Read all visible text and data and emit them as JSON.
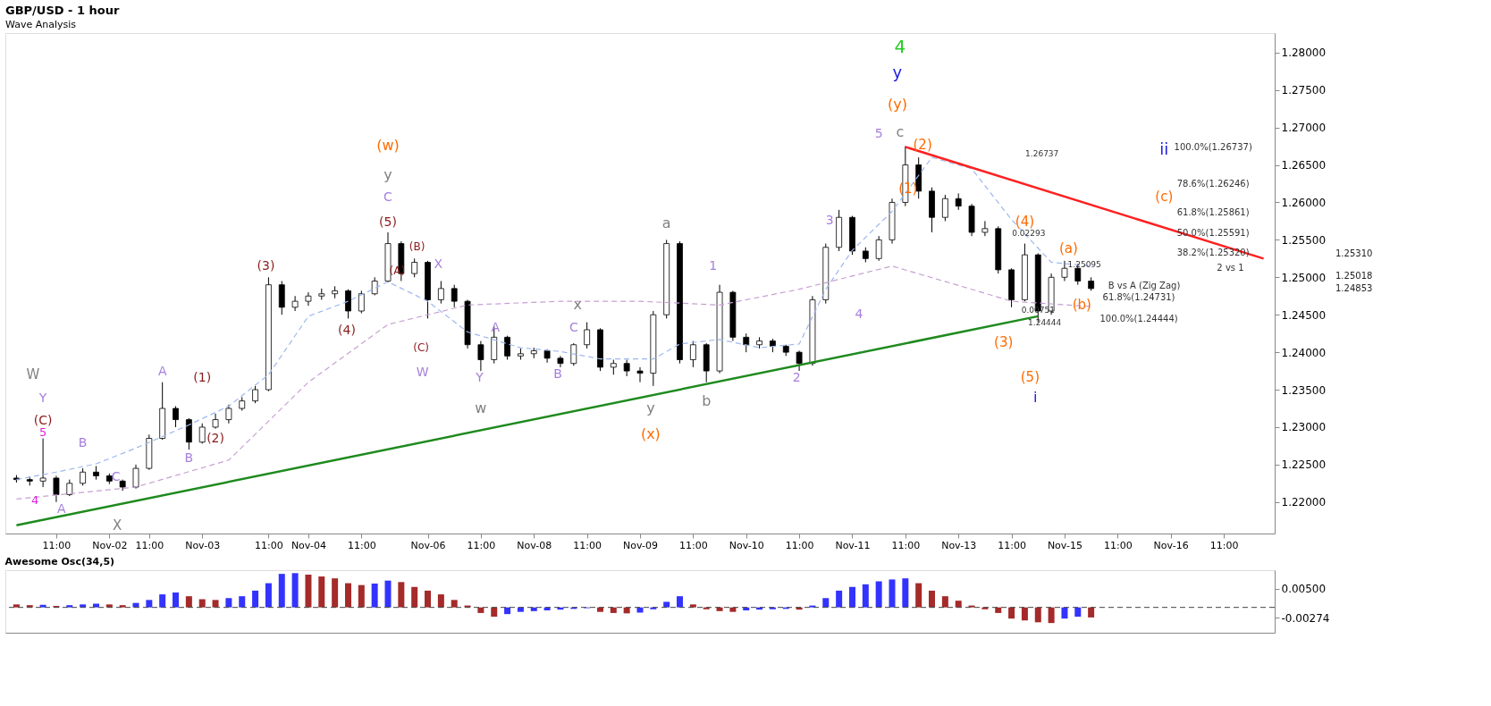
{
  "chart_data": [
    {
      "type": "candlestick",
      "title": "GBP/USD - 1 hour",
      "subtitle": "Wave Analysis",
      "categories": [
        null,
        null,
        null,
        "11:00",
        null,
        null,
        null,
        "Nov-02",
        null,
        null,
        "11:00",
        null,
        null,
        null,
        "Nov-03",
        null,
        null,
        null,
        null,
        "11:00",
        null,
        null,
        "Nov-04",
        null,
        null,
        null,
        "11:00",
        null,
        null,
        null,
        null,
        "Nov-06",
        null,
        null,
        null,
        "11:00",
        null,
        null,
        null,
        "Nov-08",
        null,
        null,
        null,
        "11:00",
        null,
        null,
        null,
        "Nov-09",
        null,
        null,
        null,
        "11:00",
        null,
        null,
        null,
        "Nov-10",
        null,
        null,
        null,
        "11:00",
        null,
        null,
        null,
        "Nov-11",
        null,
        null,
        null,
        "11:00",
        null,
        null,
        null,
        "Nov-13",
        null,
        null,
        null,
        "11:00",
        null,
        null,
        null,
        "Nov-15",
        null,
        null,
        null,
        "11:00",
        null,
        null,
        null,
        "Nov-16",
        null,
        null,
        null,
        "11:00",
        null,
        null,
        null
      ],
      "ohlc": [
        [
          1.2232,
          1.2236,
          1.2226,
          1.223
        ],
        [
          1.223,
          1.2234,
          1.2222,
          1.2228
        ],
        [
          1.2228,
          1.2285,
          1.222,
          1.2232
        ],
        [
          1.2232,
          1.2235,
          1.22,
          1.221
        ],
        [
          1.221,
          1.223,
          1.2208,
          1.2225
        ],
        [
          1.2225,
          1.2245,
          1.2222,
          1.224
        ],
        [
          1.224,
          1.2248,
          1.223,
          1.2235
        ],
        [
          1.2235,
          1.2238,
          1.2224,
          1.2228
        ],
        [
          1.2228,
          1.223,
          1.2215,
          1.222
        ],
        [
          1.222,
          1.225,
          1.2218,
          1.2245
        ],
        [
          1.2245,
          1.229,
          1.2243,
          1.2285
        ],
        [
          1.2285,
          1.236,
          1.2283,
          1.2325
        ],
        [
          1.2325,
          1.2328,
          1.23,
          1.231
        ],
        [
          1.231,
          1.2312,
          1.227,
          1.228
        ],
        [
          1.228,
          1.2305,
          1.2278,
          1.23
        ],
        [
          1.23,
          1.2318,
          1.2298,
          1.231
        ],
        [
          1.231,
          1.233,
          1.2305,
          1.2325
        ],
        [
          1.2325,
          1.234,
          1.2322,
          1.2335
        ],
        [
          1.2335,
          1.2355,
          1.2332,
          1.235
        ],
        [
          1.235,
          1.25,
          1.2348,
          1.249
        ],
        [
          1.249,
          1.2495,
          1.245,
          1.246
        ],
        [
          1.246,
          1.2475,
          1.2455,
          1.2468
        ],
        [
          1.2468,
          1.248,
          1.2462,
          1.2475
        ],
        [
          1.2475,
          1.2485,
          1.247,
          1.2478
        ],
        [
          1.2478,
          1.2488,
          1.2472,
          1.2482
        ],
        [
          1.2482,
          1.2484,
          1.2445,
          1.2455
        ],
        [
          1.2455,
          1.2482,
          1.2452,
          1.2478
        ],
        [
          1.2478,
          1.25,
          1.2476,
          1.2495
        ],
        [
          1.2495,
          1.256,
          1.2493,
          1.2545
        ],
        [
          1.2545,
          1.2548,
          1.2495,
          1.2505
        ],
        [
          1.2505,
          1.2525,
          1.25,
          1.252
        ],
        [
          1.252,
          1.2522,
          1.2445,
          1.247
        ],
        [
          1.247,
          1.2495,
          1.2465,
          1.2485
        ],
        [
          1.2485,
          1.249,
          1.246,
          1.2468
        ],
        [
          1.2468,
          1.247,
          1.2405,
          1.241
        ],
        [
          1.241,
          1.2415,
          1.2375,
          1.239
        ],
        [
          1.239,
          1.2435,
          1.2385,
          1.242
        ],
        [
          1.242,
          1.2422,
          1.239,
          1.2395
        ],
        [
          1.2395,
          1.2405,
          1.239,
          1.2398
        ],
        [
          1.2398,
          1.2406,
          1.2392,
          1.2402
        ],
        [
          1.2402,
          1.2404,
          1.2386,
          1.2392
        ],
        [
          1.2392,
          1.2395,
          1.238,
          1.2385
        ],
        [
          1.2385,
          1.2412,
          1.2382,
          1.241
        ],
        [
          1.241,
          1.244,
          1.2405,
          1.243
        ],
        [
          1.243,
          1.2432,
          1.2375,
          1.238
        ],
        [
          1.238,
          1.239,
          1.237,
          1.2385
        ],
        [
          1.2385,
          1.239,
          1.2368,
          1.2375
        ],
        [
          1.2375,
          1.238,
          1.236,
          1.2372
        ],
        [
          1.2372,
          1.2455,
          1.2355,
          1.245
        ],
        [
          1.245,
          1.255,
          1.2445,
          1.2545
        ],
        [
          1.2545,
          1.2548,
          1.2385,
          1.239
        ],
        [
          1.239,
          1.2415,
          1.238,
          1.241
        ],
        [
          1.241,
          1.2412,
          1.236,
          1.2375
        ],
        [
          1.2375,
          1.249,
          1.2372,
          1.248
        ],
        [
          1.248,
          1.2482,
          1.2415,
          1.242
        ],
        [
          1.242,
          1.2425,
          1.24,
          1.241
        ],
        [
          1.241,
          1.242,
          1.2405,
          1.2415
        ],
        [
          1.2415,
          1.2418,
          1.24,
          1.2408
        ],
        [
          1.2408,
          1.241,
          1.2395,
          1.24
        ],
        [
          1.24,
          1.2402,
          1.2375,
          1.2385
        ],
        [
          1.2385,
          1.2475,
          1.2382,
          1.247
        ],
        [
          1.247,
          1.2545,
          1.2465,
          1.254
        ],
        [
          1.254,
          1.259,
          1.2535,
          1.258
        ],
        [
          1.258,
          1.2582,
          1.253,
          1.2535
        ],
        [
          1.2535,
          1.254,
          1.252,
          1.2525
        ],
        [
          1.2525,
          1.2555,
          1.2522,
          1.255
        ],
        [
          1.255,
          1.2605,
          1.2545,
          1.26
        ],
        [
          1.26,
          1.2675,
          1.2595,
          1.265
        ],
        [
          1.265,
          1.266,
          1.2605,
          1.2615
        ],
        [
          1.2615,
          1.262,
          1.256,
          1.258
        ],
        [
          1.258,
          1.261,
          1.2575,
          1.2605
        ],
        [
          1.2605,
          1.2612,
          1.259,
          1.2595
        ],
        [
          1.2595,
          1.2598,
          1.2555,
          1.256
        ],
        [
          1.256,
          1.2575,
          1.2555,
          1.2565
        ],
        [
          1.2565,
          1.2568,
          1.2505,
          1.251
        ],
        [
          1.251,
          1.2512,
          1.246,
          1.247
        ],
        [
          1.247,
          1.2545,
          1.2468,
          1.253
        ],
        [
          1.253,
          1.2532,
          1.244,
          1.2455
        ],
        [
          1.2455,
          1.2505,
          1.245,
          1.25
        ],
        [
          1.25,
          1.2522,
          1.2495,
          1.2512
        ],
        [
          1.2512,
          1.2518,
          1.249,
          1.2495
        ],
        [
          1.2495,
          1.25,
          1.2482,
          1.2485
        ],
        null,
        null,
        null,
        null,
        null,
        null,
        null,
        null,
        null,
        null,
        null,
        null,
        null
      ],
      "ylim": [
        1.2158,
        1.2826
      ],
      "yticks": [
        {
          "value": 1.22,
          "label": "1.22000"
        },
        {
          "value": 1.225,
          "label": "1.22500"
        },
        {
          "value": 1.23,
          "label": "1.23000"
        },
        {
          "value": 1.235,
          "label": "1.23500"
        },
        {
          "value": 1.24,
          "label": "1.24000"
        },
        {
          "value": 1.245,
          "label": "1.24500"
        },
        {
          "value": 1.25,
          "label": "1.25000"
        },
        {
          "value": 1.255,
          "label": "1.25500"
        },
        {
          "value": 1.26,
          "label": "1.26000"
        },
        {
          "value": 1.265,
          "label": "1.26500"
        },
        {
          "value": 1.27,
          "label": "1.27000"
        },
        {
          "value": 1.275,
          "label": "1.27500"
        },
        {
          "value": 1.28,
          "label": "1.28000"
        }
      ],
      "series": [
        {
          "type": "line",
          "color": "#9db8ef",
          "line_style": "dashed",
          "values": [
            1.223,
            null,
            null,
            1.224,
            null,
            null,
            1.2251,
            null,
            null,
            1.2272,
            null,
            null,
            null,
            1.2303,
            null,
            null,
            1.2328,
            null,
            null,
            1.237,
            null,
            null,
            1.2448,
            null,
            null,
            1.2468,
            null,
            null,
            1.2494,
            null,
            null,
            1.2468,
            null,
            null,
            1.2427,
            null,
            null,
            null,
            1.2406,
            null,
            null,
            1.2401,
            null,
            null,
            1.2391,
            null,
            null,
            null,
            1.2391,
            null,
            1.2411,
            null,
            null,
            1.2417,
            null,
            null,
            1.2406,
            null,
            null,
            1.2411,
            null,
            1.2484,
            null,
            1.2536,
            null,
            null,
            1.2588,
            null,
            null,
            1.266,
            null,
            null,
            1.2645,
            null,
            null,
            1.2577,
            null,
            null,
            1.252,
            null,
            null,
            1.2515,
            null,
            null,
            null,
            null,
            null,
            null,
            null,
            null,
            null,
            null,
            null,
            null,
            null
          ]
        },
        {
          "type": "line",
          "color": "#c79fd4",
          "line_style": "dashed",
          "values": [
            1.2204,
            null,
            null,
            null,
            null,
            null,
            null,
            null,
            null,
            1.222,
            null,
            null,
            null,
            null,
            null,
            null,
            1.2256,
            null,
            null,
            null,
            null,
            null,
            1.236,
            null,
            null,
            null,
            null,
            null,
            1.2437,
            null,
            null,
            null,
            null,
            null,
            1.2463,
            null,
            null,
            null,
            null,
            null,
            null,
            1.2468,
            null,
            null,
            null,
            null,
            null,
            1.2468,
            null,
            null,
            null,
            null,
            null,
            1.2463,
            null,
            null,
            null,
            null,
            null,
            1.2484,
            null,
            null,
            null,
            null,
            null,
            null,
            1.2515,
            null,
            null,
            null,
            null,
            null,
            1.2484,
            null,
            null,
            1.2468,
            null,
            null,
            null,
            null,
            null,
            1.2461,
            null,
            null,
            null,
            null,
            null,
            null,
            null,
            null,
            null,
            null,
            null,
            null,
            null
          ]
        },
        {
          "type": "line",
          "color": "#1e8a1e",
          "line_style": "solid",
          "values": [
            1.2169,
            null,
            null,
            null,
            null,
            null,
            null,
            null,
            null,
            null,
            null,
            null,
            null,
            null,
            null,
            null,
            null,
            null,
            null,
            null,
            null,
            null,
            null,
            null,
            null,
            null,
            null,
            null,
            null,
            null,
            null,
            null,
            null,
            null,
            null,
            null,
            null,
            null,
            null,
            null,
            null,
            null,
            null,
            null,
            null,
            null,
            null,
            null,
            null,
            null,
            null,
            null,
            null,
            null,
            null,
            null,
            null,
            null,
            null,
            null,
            null,
            null,
            null,
            null,
            null,
            null,
            null,
            null,
            null,
            null,
            null,
            null,
            null,
            null,
            null,
            null,
            null,
            1.2448,
            null,
            null,
            null,
            null,
            null,
            null,
            null,
            null,
            null,
            null,
            null,
            null,
            null,
            null,
            null,
            null,
            null
          ]
        },
        {
          "type": "line",
          "color": "#ff2020",
          "line_style": "solid",
          "values": [
            null,
            null,
            null,
            null,
            null,
            null,
            null,
            null,
            null,
            null,
            null,
            null,
            null,
            null,
            null,
            null,
            null,
            null,
            null,
            null,
            null,
            null,
            null,
            null,
            null,
            null,
            null,
            null,
            null,
            null,
            null,
            null,
            null,
            null,
            null,
            null,
            null,
            null,
            null,
            null,
            null,
            null,
            null,
            null,
            null,
            null,
            null,
            null,
            null,
            null,
            null,
            null,
            null,
            null,
            null,
            null,
            null,
            null,
            null,
            null,
            null,
            null,
            null,
            null,
            null,
            null,
            null,
            1.2674,
            null,
            null,
            null,
            null,
            null,
            null,
            null,
            null,
            null,
            null,
            null,
            null,
            null,
            null,
            null,
            null,
            null,
            null,
            null,
            null,
            null,
            null,
            null,
            null,
            null,
            null,
            1.2525
          ]
        }
      ],
      "annotations": [
        "W",
        "Y",
        "(C)",
        "5",
        "4",
        "A",
        "B",
        "X",
        "C",
        "A",
        "(1)",
        "(2)",
        "B",
        "(3)",
        "(4)",
        "(5)",
        "C",
        "y",
        "(w)",
        "(B)",
        "(A)",
        "(C)",
        "X",
        "W",
        "A",
        "Y",
        "w",
        "x",
        "C",
        "B",
        "a",
        "1",
        "y",
        "b",
        "(x)",
        "2",
        "3",
        "4",
        "5",
        "c",
        "(2)",
        "(1)",
        "(y)",
        "y",
        "4",
        "(4)",
        "(3)",
        "(5)",
        "i",
        "(a)",
        "(b)",
        "ii",
        "(c)",
        "B vs A (Zig Zag)",
        "2 vs 1",
        "1.26737",
        "0.02293",
        "0.00751",
        "1.24444",
        "1.25095",
        "100.0%(1.26737)",
        "78.6%(1.26246)",
        "61.8%(1.25861)",
        "50.0%(1.25591)",
        "38.2%(1.25320)",
        "61.8%(1.24731)",
        "100.0%(1.24444)",
        "1.25310",
        "1.25018",
        "1.24853"
      ]
    },
    {
      "type": "bar",
      "title": "Awesome Osc(34,5)",
      "tick_labels": "y",
      "categories": [
        null,
        null,
        null,
        null,
        null,
        null,
        null,
        null,
        null,
        null,
        null,
        null,
        null,
        null,
        null,
        null,
        null,
        null,
        null,
        null,
        null,
        null,
        null,
        null,
        null,
        null,
        null,
        null,
        null,
        null,
        null,
        null,
        null,
        null,
        null,
        null,
        null,
        null,
        null,
        null,
        null,
        null,
        null,
        null,
        null,
        null,
        null,
        null,
        null,
        null,
        null,
        null,
        null,
        null,
        null,
        null,
        null,
        null,
        null,
        null,
        null,
        null,
        null,
        null,
        null,
        null,
        null,
        null,
        null,
        null,
        null,
        null,
        null,
        null,
        null,
        null,
        null,
        null,
        null,
        null,
        null,
        null,
        null,
        null,
        null,
        null,
        null,
        null,
        null,
        null,
        null,
        null,
        null,
        null,
        null
      ],
      "values": [
        0.0008,
        0.0006,
        0.0007,
        0.0004,
        0.0006,
        0.0008,
        0.001,
        0.0008,
        0.0006,
        0.0012,
        0.002,
        0.0035,
        0.004,
        0.003,
        0.0022,
        0.002,
        0.0025,
        0.003,
        0.0045,
        0.0065,
        0.009,
        0.0092,
        0.0088,
        0.0083,
        0.0078,
        0.0065,
        0.006,
        0.0064,
        0.0072,
        0.0068,
        0.0055,
        0.0045,
        0.0035,
        0.002,
        0.0005,
        -0.0015,
        -0.0025,
        -0.0018,
        -0.0012,
        -0.001,
        -0.0008,
        -0.0006,
        -0.0004,
        -0.0002,
        -0.0012,
        -0.0015,
        -0.0016,
        -0.0014,
        -0.0005,
        0.0015,
        0.003,
        0.0008,
        -0.0005,
        -0.001,
        -0.0012,
        -0.0008,
        -0.0006,
        -0.0005,
        -0.0004,
        -0.0006,
        0.0005,
        0.0025,
        0.0045,
        0.0055,
        0.0062,
        0.007,
        0.0075,
        0.0078,
        0.0065,
        0.0045,
        0.003,
        0.0018,
        0.0005,
        -0.0005,
        -0.0015,
        -0.003,
        -0.0035,
        -0.004,
        -0.0042,
        -0.003,
        -0.0025,
        -0.0027,
        null,
        null,
        null,
        null,
        null,
        null,
        null,
        null,
        null,
        null,
        null,
        null,
        null
      ],
      "colors": [
        "#a52a2a",
        "#a52a2a",
        "#3333ff",
        "#a52a2a",
        "#3333ff",
        "#3333ff",
        "#3333ff",
        "#a52a2a",
        "#a52a2a",
        "#3333ff",
        "#3333ff",
        "#3333ff",
        "#3333ff",
        "#a52a2a",
        "#a52a2a",
        "#a52a2a",
        "#3333ff",
        "#3333ff",
        "#3333ff",
        "#3333ff",
        "#3333ff",
        "#3333ff",
        "#a52a2a",
        "#a52a2a",
        "#a52a2a",
        "#a52a2a",
        "#a52a2a",
        "#3333ff",
        "#3333ff",
        "#a52a2a",
        "#a52a2a",
        "#a52a2a",
        "#a52a2a",
        "#a52a2a",
        "#a52a2a",
        "#a52a2a",
        "#a52a2a",
        "#3333ff",
        "#3333ff",
        "#3333ff",
        "#3333ff",
        "#3333ff",
        "#3333ff",
        "#3333ff",
        "#a52a2a",
        "#a52a2a",
        "#a52a2a",
        "#3333ff",
        "#3333ff",
        "#3333ff",
        "#3333ff",
        "#a52a2a",
        "#a52a2a",
        "#a52a2a",
        "#a52a2a",
        "#3333ff",
        "#3333ff",
        "#3333ff",
        "#3333ff",
        "#a52a2a",
        "#3333ff",
        "#3333ff",
        "#3333ff",
        "#3333ff",
        "#3333ff",
        "#3333ff",
        "#3333ff",
        "#3333ff",
        "#a52a2a",
        "#a52a2a",
        "#a52a2a",
        "#a52a2a",
        "#a52a2a",
        "#a52a2a",
        "#a52a2a",
        "#a52a2a",
        "#a52a2a",
        "#a52a2a",
        "#a52a2a",
        "#3333ff",
        "#3333ff",
        "#a52a2a",
        null,
        null,
        null,
        null,
        null,
        null,
        null,
        null,
        null,
        null,
        null,
        null,
        null
      ],
      "ylim": [
        -0.0068,
        0.01
      ],
      "yticks": [
        {
          "value": 0.005,
          "label": "0.00500"
        },
        {
          "value": -0.00274,
          "label": "-0.00274"
        }
      ],
      "ref_lines": [
        {
          "axis": "y",
          "value": 0,
          "line_style": "dashed",
          "color": "#444444"
        }
      ]
    }
  ]
}
